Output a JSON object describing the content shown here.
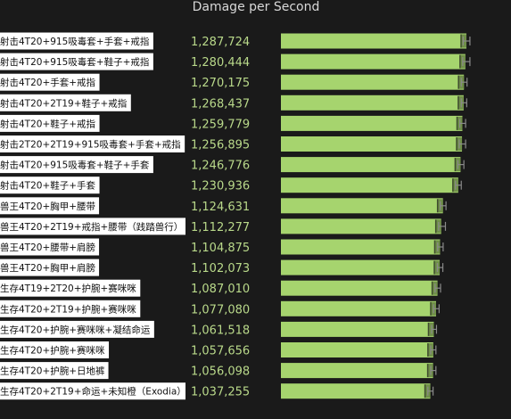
{
  "chart_data": {
    "type": "bar",
    "title": "Damage per Second",
    "xlabel": "",
    "ylabel": "",
    "xlim": [
      0,
      1300000
    ],
    "categories": [
      "射击4T20+915吸毒套+手套+戒指",
      "射击4T20+915吸毒套+鞋子+戒指",
      "射击4T20+手套+戒指",
      "射击4T20+2T19+鞋子+戒指",
      "射击4T20+鞋子+戒指",
      "射击2T20+2T19+915吸毒套+手套+戒指",
      "射击4T20+915吸毒套+鞋子+手套",
      "射击4T20+鞋子+手套",
      "兽王4T20+胸甲+腰带",
      "兽王4T20+2T19+戒指+腰带（践踏兽行）",
      "兽王4T20+腰带+肩膀",
      "兽王4T20+胸甲+肩膀",
      "生存4T19+2T20+护腕+赛咪咪",
      "生存4T20+2T19+护腕+赛咪咪",
      "生存4T20+护腕+赛咪咪+凝结命运",
      "生存4T20+护腕+赛咪咪",
      "生存4T20+护腕+日地裤",
      "生存4T20+2T19+命运+未知橙（Exodia）"
    ],
    "values": [
      1287724,
      1280444,
      1270175,
      1268437,
      1259779,
      1256895,
      1246776,
      1230936,
      1124631,
      1112277,
      1104875,
      1102073,
      1087010,
      1077080,
      1061518,
      1057656,
      1056098,
      1037255
    ],
    "value_labels": [
      "1,287,724",
      "1,280,444",
      "1,270,175",
      "1,268,437",
      "1,259,779",
      "1,256,895",
      "1,246,776",
      "1,230,936",
      "1,124,631",
      "1,112,277",
      "1,104,875",
      "1,102,073",
      "1,087,010",
      "1,077,080",
      "1,061,518",
      "1,057,656",
      "1,056,098",
      "1,037,255"
    ],
    "error_low": [
      1265000,
      1262000,
      1252000,
      1252000,
      1242000,
      1238000,
      1228000,
      1212000,
      1106000,
      1095000,
      1088000,
      1086000,
      1070000,
      1060000,
      1046000,
      1040000,
      1040000,
      1020000
    ],
    "error_high": [
      1312000,
      1312000,
      1292000,
      1290000,
      1282000,
      1282000,
      1270000,
      1252000,
      1146000,
      1142000,
      1126000,
      1124000,
      1108000,
      1098000,
      1080000,
      1076000,
      1076000,
      1056000
    ],
    "colors": {
      "bar": "#a6d46e",
      "bar_tip": "#6f8f48",
      "value_text": "#b9d98a",
      "background": "#1a1a1a",
      "error_bar": "#8a8a8a",
      "label_box": "#ffffff"
    }
  }
}
